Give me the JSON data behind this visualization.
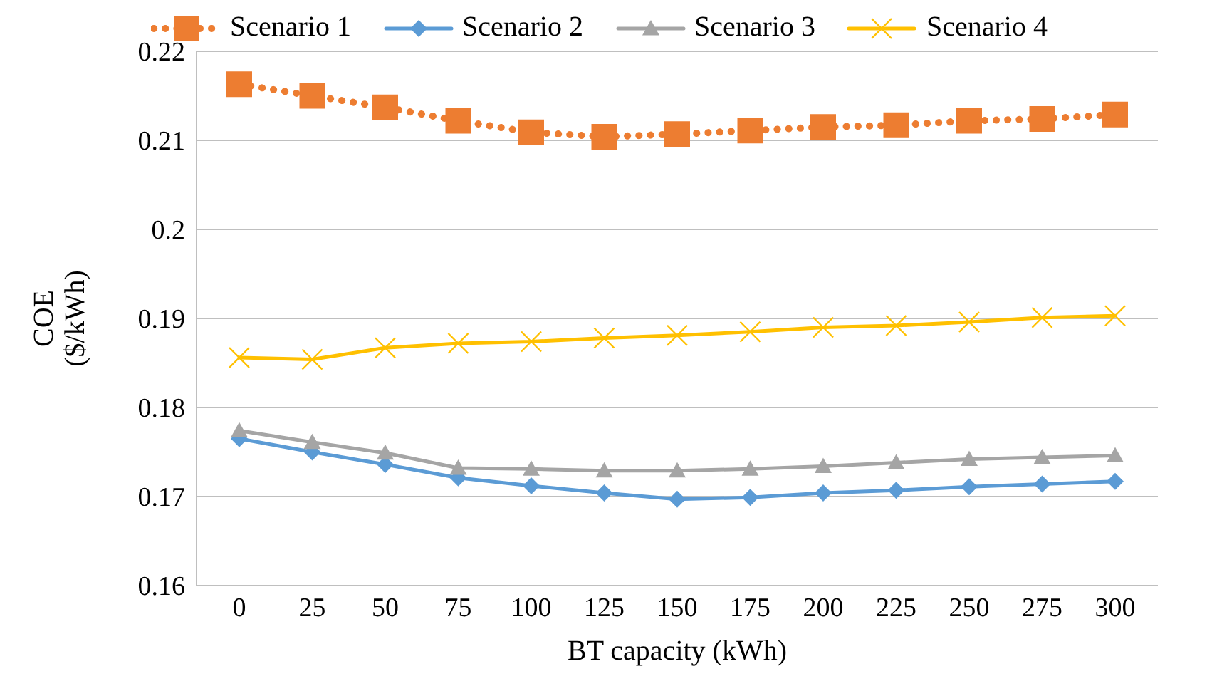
{
  "chart_data": {
    "type": "line",
    "xlabel": "BT capacity (kWh)",
    "ylabel": "COE\n($/kWh)",
    "categories": [
      "0",
      "25",
      "50",
      "75",
      "100",
      "125",
      "150",
      "175",
      "200",
      "225",
      "250",
      "275",
      "300"
    ],
    "series": [
      {
        "name": "Scenario 1",
        "color": "#ed7d31",
        "marker": "square",
        "line_style": "dotted",
        "values": [
          0.2163,
          0.215,
          0.2137,
          0.2122,
          0.2109,
          0.2104,
          0.2107,
          0.2111,
          0.2115,
          0.2117,
          0.2122,
          0.2124,
          0.2129
        ]
      },
      {
        "name": "Scenario 2",
        "color": "#5b9bd5",
        "marker": "diamond",
        "line_style": "solid",
        "values": [
          0.1765,
          0.175,
          0.1736,
          0.1721,
          0.1712,
          0.1704,
          0.1697,
          0.1699,
          0.1704,
          0.1707,
          0.1711,
          0.1714,
          0.1717
        ]
      },
      {
        "name": "Scenario 3",
        "color": "#a5a5a5",
        "marker": "triangle",
        "line_style": "solid",
        "values": [
          0.1774,
          0.1761,
          0.1749,
          0.1732,
          0.1731,
          0.1729,
          0.1729,
          0.1731,
          0.1734,
          0.1738,
          0.1742,
          0.1744,
          0.1746
        ]
      },
      {
        "name": "Scenario 4",
        "color": "#ffc000",
        "marker": "cross",
        "line_style": "solid",
        "values": [
          0.1856,
          0.1854,
          0.1867,
          0.1872,
          0.1874,
          0.1878,
          0.1881,
          0.1885,
          0.189,
          0.1892,
          0.1896,
          0.1901,
          0.1903
        ]
      }
    ],
    "ylim": [
      0.16,
      0.22
    ],
    "yticks": [
      0.16,
      0.17,
      0.18,
      0.19,
      0.2,
      0.21,
      0.22
    ],
    "grid": "y",
    "legend": "top"
  }
}
